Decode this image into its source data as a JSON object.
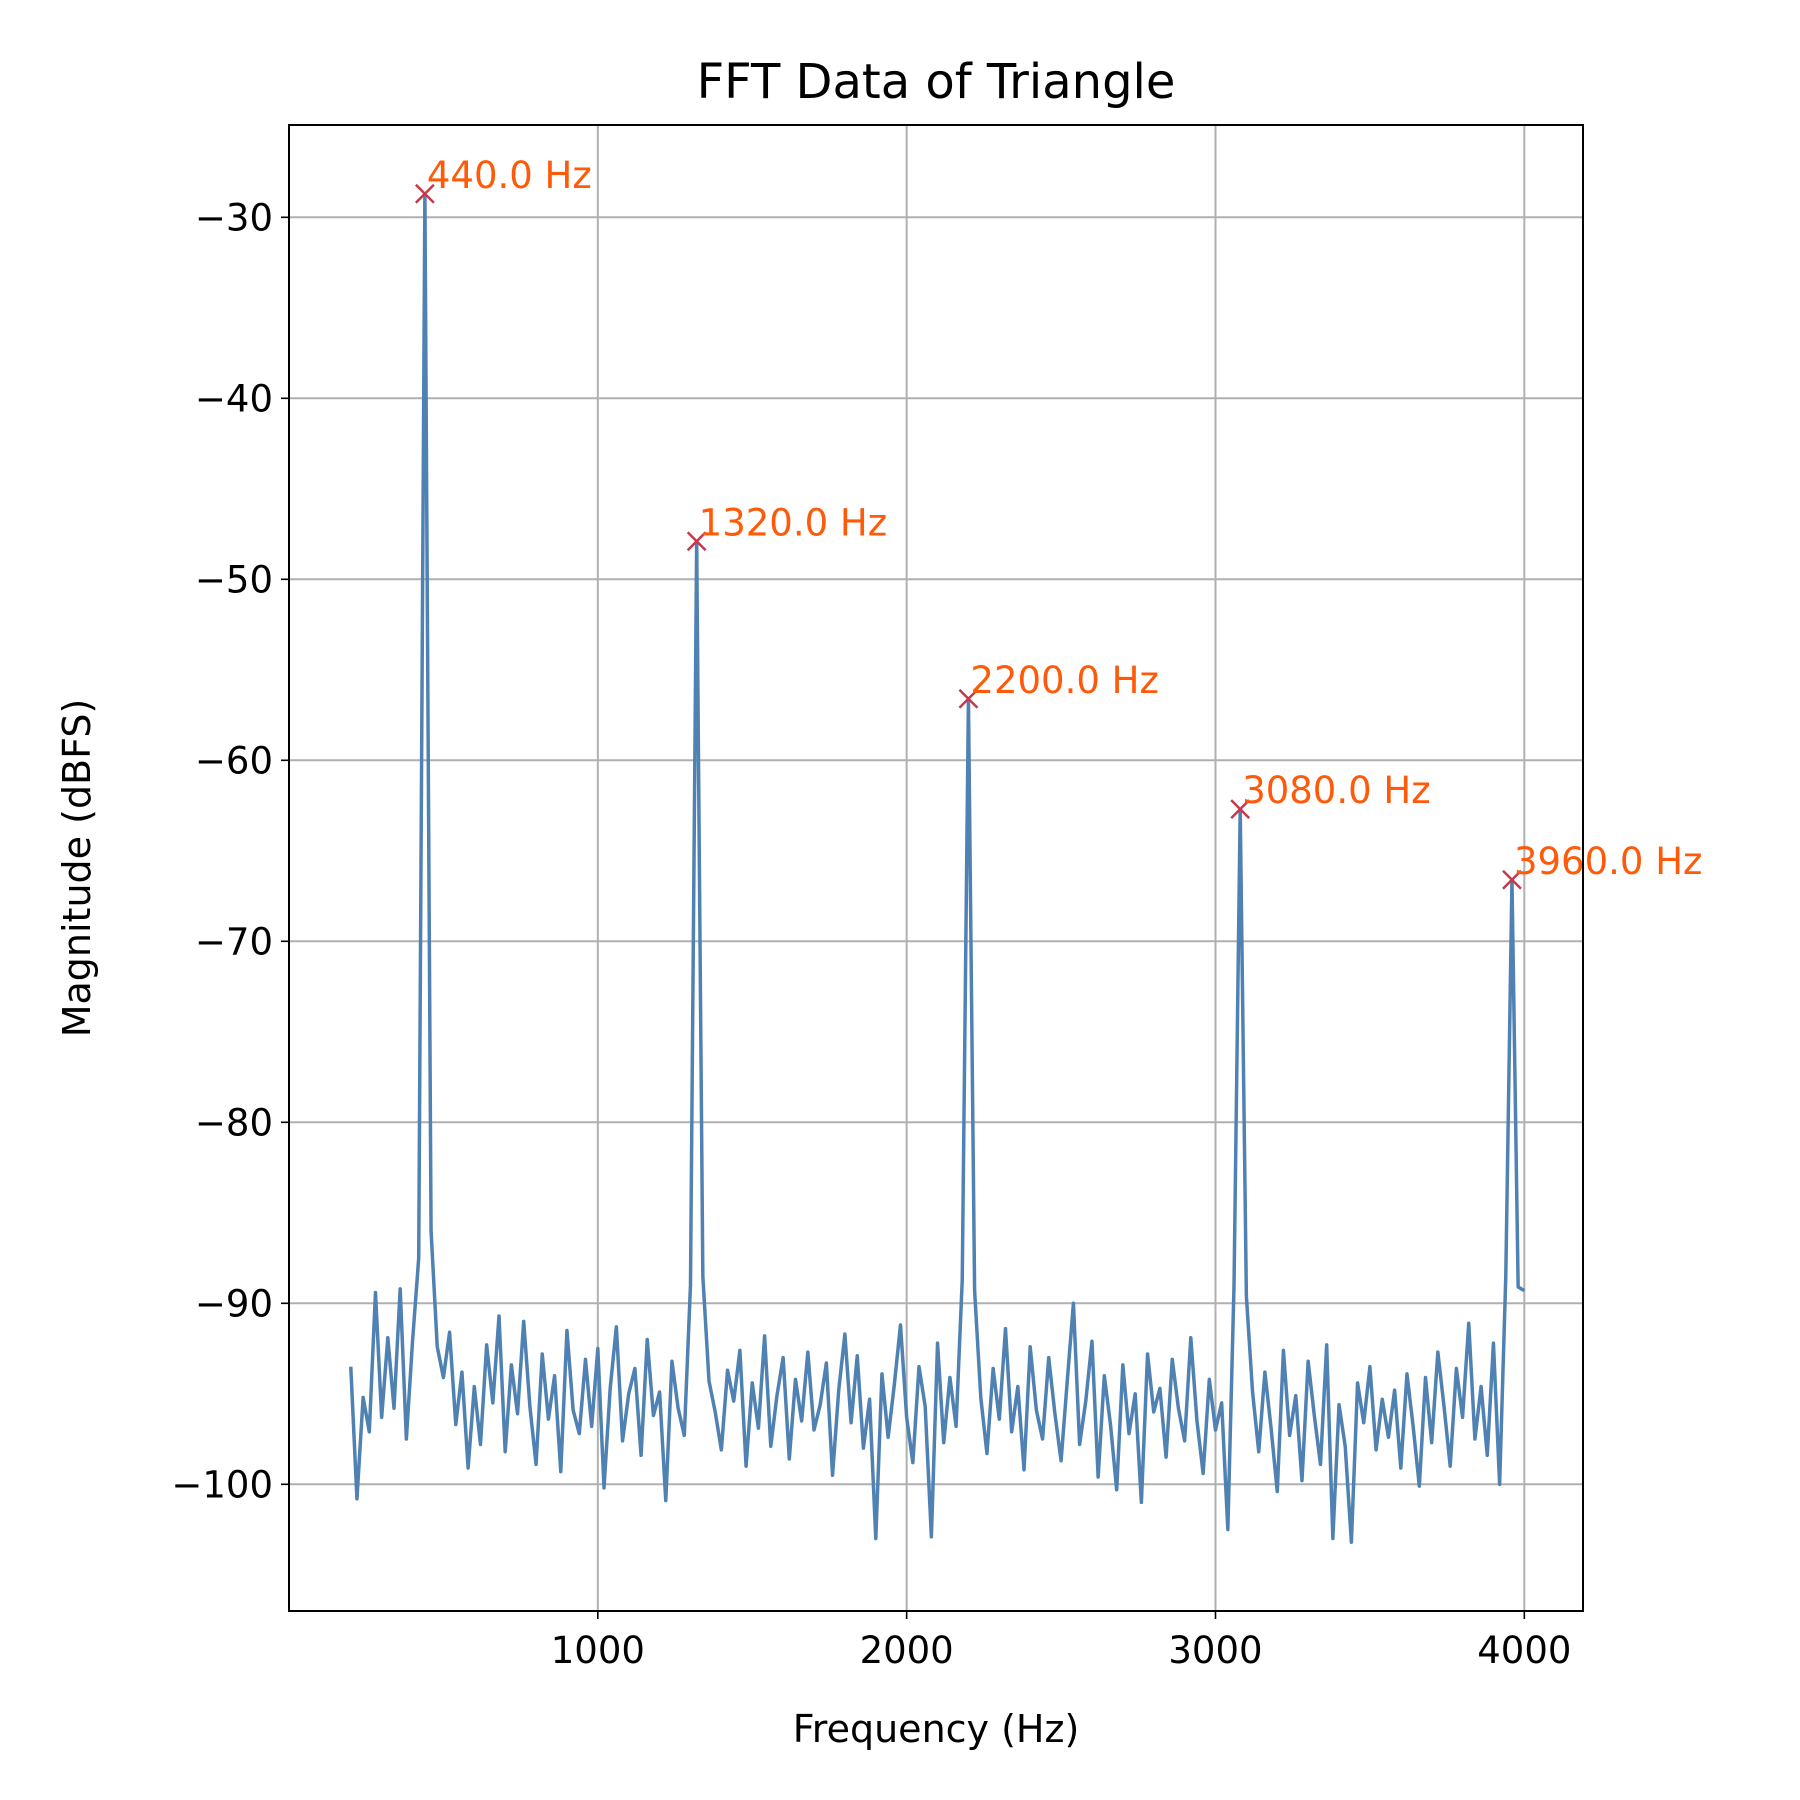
{
  "chart_data": {
    "type": "line",
    "title": "FFT Data of Triangle",
    "x_label": "Frequency (Hz)",
    "y_label": "Magnitude (dBFS)",
    "xlim": [
      0,
      4190
    ],
    "ylim": [
      -107,
      -24.9
    ],
    "xticks": [
      1000,
      2000,
      3000,
      4000
    ],
    "yticks": [
      {
        "value": -100,
        "label": "−100"
      },
      {
        "value": -90,
        "label": "−90"
      },
      {
        "value": -80,
        "label": "−80"
      },
      {
        "value": -70,
        "label": "−70"
      },
      {
        "value": -60,
        "label": "−60"
      },
      {
        "value": -50,
        "label": "−50"
      },
      {
        "value": -40,
        "label": "−40"
      },
      {
        "value": -30,
        "label": "−30"
      }
    ],
    "grid": true,
    "x": [
      200,
      220,
      240,
      260,
      280,
      300,
      320,
      340,
      360,
      380,
      400,
      420,
      440,
      460,
      480,
      500,
      520,
      540,
      560,
      580,
      600,
      620,
      640,
      660,
      680,
      700,
      720,
      740,
      760,
      780,
      800,
      820,
      840,
      860,
      880,
      900,
      920,
      940,
      960,
      980,
      1000,
      1020,
      1040,
      1060,
      1080,
      1100,
      1120,
      1140,
      1160,
      1180,
      1200,
      1220,
      1240,
      1260,
      1280,
      1300,
      1320,
      1340,
      1360,
      1380,
      1400,
      1420,
      1440,
      1460,
      1480,
      1500,
      1520,
      1540,
      1560,
      1580,
      1600,
      1620,
      1640,
      1660,
      1680,
      1700,
      1720,
      1740,
      1760,
      1780,
      1800,
      1820,
      1840,
      1860,
      1880,
      1900,
      1920,
      1940,
      1960,
      1980,
      2000,
      2020,
      2040,
      2060,
      2080,
      2100,
      2120,
      2140,
      2160,
      2180,
      2200,
      2220,
      2240,
      2260,
      2280,
      2300,
      2320,
      2340,
      2360,
      2380,
      2400,
      2420,
      2440,
      2460,
      2480,
      2500,
      2520,
      2540,
      2560,
      2580,
      2600,
      2620,
      2640,
      2660,
      2680,
      2700,
      2720,
      2740,
      2760,
      2780,
      2800,
      2820,
      2840,
      2860,
      2880,
      2900,
      2920,
      2940,
      2960,
      2980,
      3000,
      3020,
      3040,
      3060,
      3080,
      3100,
      3120,
      3140,
      3160,
      3180,
      3200,
      3220,
      3240,
      3260,
      3280,
      3300,
      3320,
      3340,
      3360,
      3380,
      3400,
      3420,
      3440,
      3460,
      3480,
      3500,
      3520,
      3540,
      3560,
      3580,
      3600,
      3620,
      3640,
      3660,
      3680,
      3700,
      3720,
      3740,
      3760,
      3780,
      3800,
      3820,
      3840,
      3860,
      3880,
      3900,
      3920,
      3940,
      3960,
      3980,
      4000
    ],
    "series": [
      {
        "color": "#4f82b3",
        "values": [
          -93.5,
          -100.8,
          -95.2,
          -97.1,
          -89.4,
          -96.3,
          -91.9,
          -95.8,
          -89.2,
          -97.5,
          -92.1,
          -87.5,
          -28.7,
          -86.0,
          -92.4,
          -94.1,
          -91.6,
          -96.7,
          -93.8,
          -99.1,
          -94.6,
          -97.8,
          -92.3,
          -95.5,
          -90.7,
          -98.2,
          -93.4,
          -96.1,
          -91.0,
          -95.7,
          -98.9,
          -92.8,
          -96.4,
          -94.0,
          -99.3,
          -91.5,
          -95.9,
          -97.2,
          -93.1,
          -96.8,
          -92.5,
          -100.2,
          -94.7,
          -91.3,
          -97.6,
          -95.0,
          -93.6,
          -98.4,
          -92.0,
          -96.2,
          -94.9,
          -100.9,
          -93.2,
          -95.8,
          -97.3,
          -89.0,
          -47.9,
          -88.5,
          -94.3,
          -96.0,
          -98.1,
          -93.7,
          -95.4,
          -92.6,
          -99.0,
          -94.4,
          -96.9,
          -91.8,
          -97.9,
          -95.1,
          -93.0,
          -98.6,
          -94.2,
          -96.5,
          -92.7,
          -97.0,
          -95.6,
          -93.3,
          -99.5,
          -94.8,
          -91.7,
          -96.6,
          -92.9,
          -98.0,
          -95.3,
          -103.0,
          -93.9,
          -97.4,
          -94.5,
          -91.2,
          -96.3,
          -98.8,
          -93.5,
          -95.7,
          -102.9,
          -92.2,
          -97.7,
          -94.1,
          -96.8,
          -88.7,
          -56.6,
          -89.3,
          -95.2,
          -98.3,
          -93.6,
          -96.4,
          -91.4,
          -97.1,
          -94.6,
          -99.2,
          -92.4,
          -95.9,
          -97.5,
          -93.0,
          -96.1,
          -98.7,
          -94.3,
          -90.0,
          -97.8,
          -95.4,
          -92.1,
          -99.6,
          -94.0,
          -96.7,
          -100.3,
          -93.4,
          -97.2,
          -95.0,
          -101.0,
          -92.8,
          -96.0,
          -94.7,
          -98.5,
          -93.1,
          -95.8,
          -97.6,
          -91.9,
          -96.5,
          -99.4,
          -94.2,
          -97.0,
          -95.5,
          -102.5,
          -89.0,
          -62.7,
          -89.6,
          -94.9,
          -98.2,
          -93.8,
          -96.9,
          -100.4,
          -92.6,
          -97.3,
          -95.1,
          -99.8,
          -93.2,
          -96.2,
          -98.9,
          -92.3,
          -103.0,
          -95.6,
          -97.9,
          -103.2,
          -94.4,
          -96.6,
          -93.5,
          -98.1,
          -95.3,
          -97.4,
          -94.8,
          -99.1,
          -93.9,
          -96.8,
          -100.1,
          -94.1,
          -97.7,
          -92.7,
          -95.7,
          -99.0,
          -93.6,
          -96.3,
          -91.1,
          -97.5,
          -94.6,
          -98.4,
          -92.2,
          -100.0,
          -88.5,
          -66.6,
          -89.1,
          -89.3
        ]
      }
    ],
    "peaks": {
      "marker_color": "#c8384a",
      "label_color": "#ff5a0a",
      "points": [
        {
          "x": 440,
          "y": -28.7,
          "label": "440.0 Hz"
        },
        {
          "x": 1320,
          "y": -47.9,
          "label": "1320.0 Hz"
        },
        {
          "x": 2200,
          "y": -56.6,
          "label": "2200.0 Hz"
        },
        {
          "x": 3080,
          "y": -62.7,
          "label": "3080.0 Hz"
        },
        {
          "x": 3960,
          "y": -66.6,
          "label": "3960.0 Hz"
        }
      ]
    }
  }
}
